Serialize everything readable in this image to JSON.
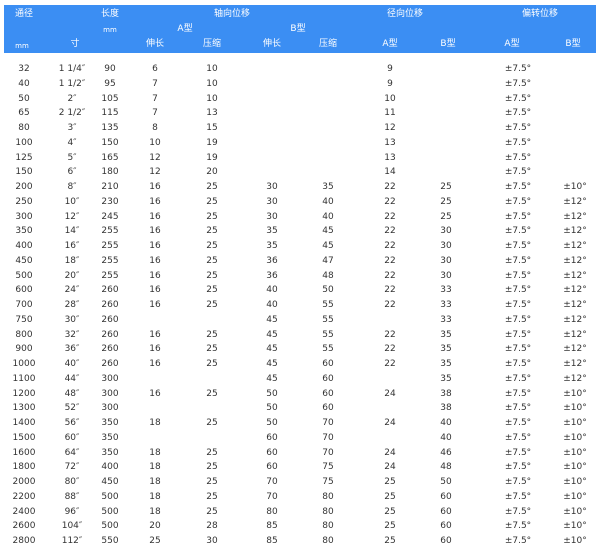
{
  "accent_color": "#3b8ef3",
  "header": {
    "row1": {
      "nominal_diameter": "通径",
      "length": "长度",
      "axial": "轴向位移",
      "radial": "径向位移",
      "angular": "偏转位移"
    },
    "row2": {
      "length_unit": "mm",
      "axial_a": "A型",
      "axial_b": "B型"
    },
    "row3": {
      "mm": "mm",
      "inch": "寸",
      "a_ext": "伸长",
      "a_comp": "压缩",
      "b_ext": "伸长",
      "b_comp": "压缩",
      "radial_a": "A型",
      "radial_b": "B型",
      "angular_a": "A型",
      "angular_b": "B型"
    }
  },
  "rows": [
    [
      "32",
      "1 1/4″",
      "90",
      "6",
      "10",
      "",
      "",
      "9",
      "",
      "±7.5°",
      ""
    ],
    [
      "40",
      "1 1/2″",
      "95",
      "7",
      "10",
      "",
      "",
      "9",
      "",
      "±7.5°",
      ""
    ],
    [
      "50",
      "2″",
      "105",
      "7",
      "10",
      "",
      "",
      "10",
      "",
      "±7.5°",
      ""
    ],
    [
      "65",
      "2 1/2″",
      "115",
      "7",
      "13",
      "",
      "",
      "11",
      "",
      "±7.5°",
      ""
    ],
    [
      "80",
      "3″",
      "135",
      "8",
      "15",
      "",
      "",
      "12",
      "",
      "±7.5°",
      ""
    ],
    [
      "100",
      "4″",
      "150",
      "10",
      "19",
      "",
      "",
      "13",
      "",
      "±7.5°",
      ""
    ],
    [
      "125",
      "5″",
      "165",
      "12",
      "19",
      "",
      "",
      "13",
      "",
      "±7.5°",
      ""
    ],
    [
      "150",
      "6″",
      "180",
      "12",
      "20",
      "",
      "",
      "14",
      "",
      "±7.5°",
      ""
    ],
    [
      "200",
      "8″",
      "210",
      "16",
      "25",
      "30",
      "35",
      "22",
      "25",
      "±7.5°",
      "±10°"
    ],
    [
      "250",
      "10″",
      "230",
      "16",
      "25",
      "30",
      "40",
      "22",
      "25",
      "±7.5°",
      "±12°"
    ],
    [
      "300",
      "12″",
      "245",
      "16",
      "25",
      "30",
      "40",
      "22",
      "25",
      "±7.5°",
      "±12°"
    ],
    [
      "350",
      "14″",
      "255",
      "16",
      "25",
      "35",
      "45",
      "22",
      "30",
      "±7.5°",
      "±12°"
    ],
    [
      "400",
      "16″",
      "255",
      "16",
      "25",
      "35",
      "45",
      "22",
      "30",
      "±7.5°",
      "±12°"
    ],
    [
      "450",
      "18″",
      "255",
      "16",
      "25",
      "36",
      "47",
      "22",
      "30",
      "±7.5°",
      "±12°"
    ],
    [
      "500",
      "20″",
      "255",
      "16",
      "25",
      "36",
      "48",
      "22",
      "30",
      "±7.5°",
      "±12°"
    ],
    [
      "600",
      "24″",
      "260",
      "16",
      "25",
      "40",
      "50",
      "22",
      "33",
      "±7.5°",
      "±12°"
    ],
    [
      "700",
      "28″",
      "260",
      "16",
      "25",
      "40",
      "55",
      "22",
      "33",
      "±7.5°",
      "±12°"
    ],
    [
      "750",
      "30″",
      "260",
      "",
      "",
      "45",
      "55",
      "",
      "33",
      "±7.5°",
      "±12°"
    ],
    [
      "800",
      "32″",
      "260",
      "16",
      "25",
      "45",
      "55",
      "22",
      "35",
      "±7.5°",
      "±12°"
    ],
    [
      "900",
      "36″",
      "260",
      "16",
      "25",
      "45",
      "55",
      "22",
      "35",
      "±7.5°",
      "±12°"
    ],
    [
      "1000",
      "40″",
      "260",
      "16",
      "25",
      "45",
      "60",
      "22",
      "35",
      "±7.5°",
      "±12°"
    ],
    [
      "1100",
      "44″",
      "300",
      "",
      "",
      "45",
      "60",
      "",
      "35",
      "±7.5°",
      "±12°"
    ],
    [
      "1200",
      "48″",
      "300",
      "16",
      "25",
      "50",
      "60",
      "24",
      "38",
      "±7.5°",
      "±10°"
    ],
    [
      "1300",
      "52″",
      "300",
      "",
      "",
      "50",
      "60",
      "",
      "38",
      "±7.5°",
      "±10°"
    ],
    [
      "1400",
      "56″",
      "350",
      "18",
      "25",
      "50",
      "70",
      "24",
      "40",
      "±7.5°",
      "±10°"
    ],
    [
      "1500",
      "60″",
      "350",
      "",
      "",
      "60",
      "70",
      "",
      "40",
      "±7.5°",
      "±10°"
    ],
    [
      "1600",
      "64″",
      "350",
      "18",
      "25",
      "60",
      "70",
      "24",
      "46",
      "±7.5°",
      "±10°"
    ],
    [
      "1800",
      "72″",
      "400",
      "18",
      "25",
      "60",
      "75",
      "24",
      "48",
      "±7.5°",
      "±10°"
    ],
    [
      "2000",
      "80″",
      "450",
      "18",
      "25",
      "70",
      "75",
      "25",
      "50",
      "±7.5°",
      "±10°"
    ],
    [
      "2200",
      "88″",
      "500",
      "18",
      "25",
      "70",
      "80",
      "25",
      "60",
      "±7.5°",
      "±10°"
    ],
    [
      "2400",
      "96″",
      "500",
      "18",
      "25",
      "80",
      "80",
      "25",
      "60",
      "±7.5°",
      "±10°"
    ],
    [
      "2600",
      "104″",
      "500",
      "20",
      "28",
      "85",
      "80",
      "25",
      "60",
      "±7.5°",
      "±10°"
    ],
    [
      "2800",
      "112″",
      "550",
      "25",
      "30",
      "85",
      "80",
      "25",
      "60",
      "±7.5°",
      "±10°"
    ]
  ]
}
